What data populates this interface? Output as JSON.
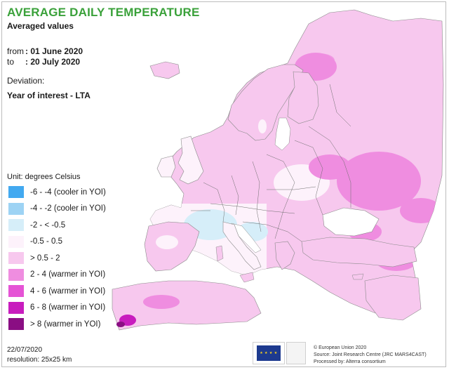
{
  "title": "AVERAGE DAILY TEMPERATURE",
  "subtitle": "Averaged values",
  "period": {
    "from_label": "from",
    "from_value": ": 01 June 2020",
    "to_label": "to",
    "to_value": ": 20 July 2020"
  },
  "deviation_label": "Deviation:",
  "deviation_type": "Year of interest - LTA",
  "legend": {
    "unit": "Unit: degrees Celsius",
    "classes": [
      {
        "label": "-6 - -4 (cooler in YOI)",
        "color": "#42a9f0"
      },
      {
        "label": "-4 - -2 (cooler in YOI)",
        "color": "#9dd3f4"
      },
      {
        "label": "-2 - < -0.5",
        "color": "#d6eef9"
      },
      {
        "label": "-0.5 - 0.5",
        "color": "#fdf2fb"
      },
      {
        "label": "> 0.5 - 2",
        "color": "#f7c8ee"
      },
      {
        "label": "2 - 4 (warmer in YOI)",
        "color": "#ef8de0"
      },
      {
        "label": "4 - 6 (warmer in YOI)",
        "color": "#e553d5"
      },
      {
        "label": "6 - 8 (warmer in YOI)",
        "color": "#c81cbe"
      },
      {
        "label": "> 8 (warmer in YOI)",
        "color": "#8a0e83"
      }
    ]
  },
  "footer": {
    "date": "22/07/2020",
    "resolution": "resolution: 25x25 km",
    "credit_1": "© European Union 2020",
    "credit_2": "Source: Joint Research Centre (JRC MARS4CAST)",
    "credit_3": "Processed by: Alterra consortium"
  },
  "colors": {
    "title": "#3aa13a",
    "sea": "#ffffff",
    "border": "#6e6e6e"
  }
}
